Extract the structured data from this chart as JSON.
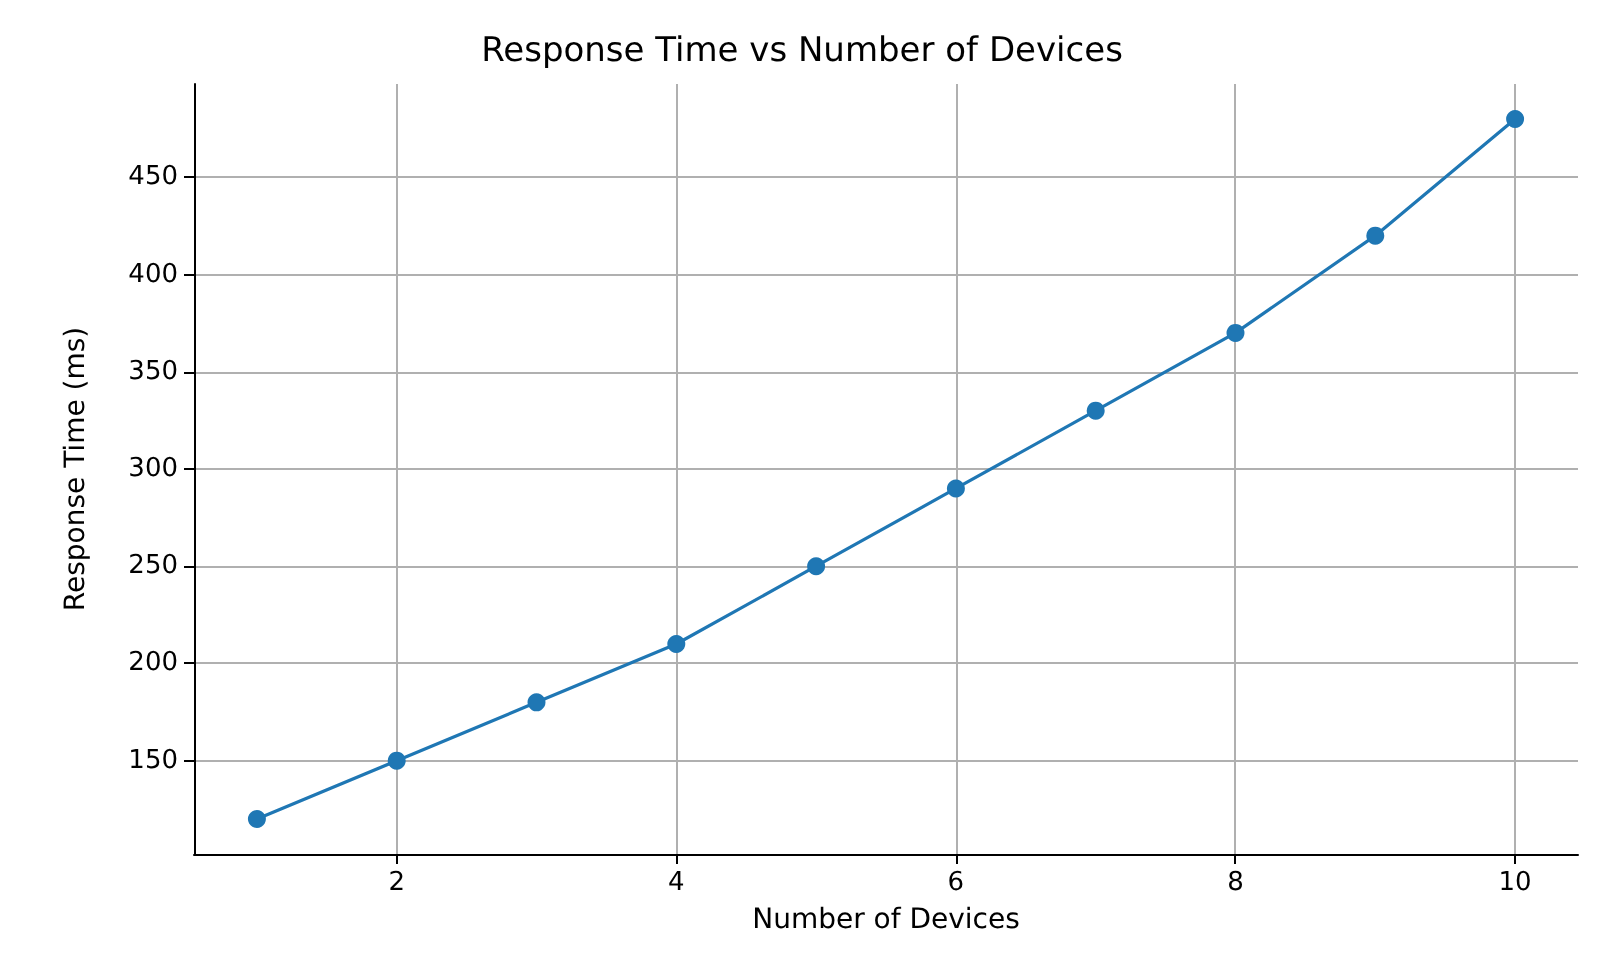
{
  "chart_data": {
    "type": "line",
    "title": "Response Time vs Number of Devices",
    "xlabel": "Number of Devices",
    "ylabel": "Response Time (ms)",
    "x": [
      1,
      2,
      3,
      4,
      5,
      6,
      7,
      8,
      9,
      10
    ],
    "series": [
      {
        "color": "#1f77b4",
        "values": [
          120,
          150,
          180,
          210,
          250,
          290,
          330,
          370,
          420,
          480
        ]
      }
    ],
    "xlim": [
      0.55,
      10.45
    ],
    "xticks": [
      2,
      4,
      6,
      8,
      10
    ],
    "ylim": [
      102,
      498
    ],
    "yticks": [
      150,
      200,
      250,
      300,
      350,
      400,
      450
    ],
    "grid": true,
    "marker": "circle",
    "line_style": "solid",
    "legend": false
  }
}
